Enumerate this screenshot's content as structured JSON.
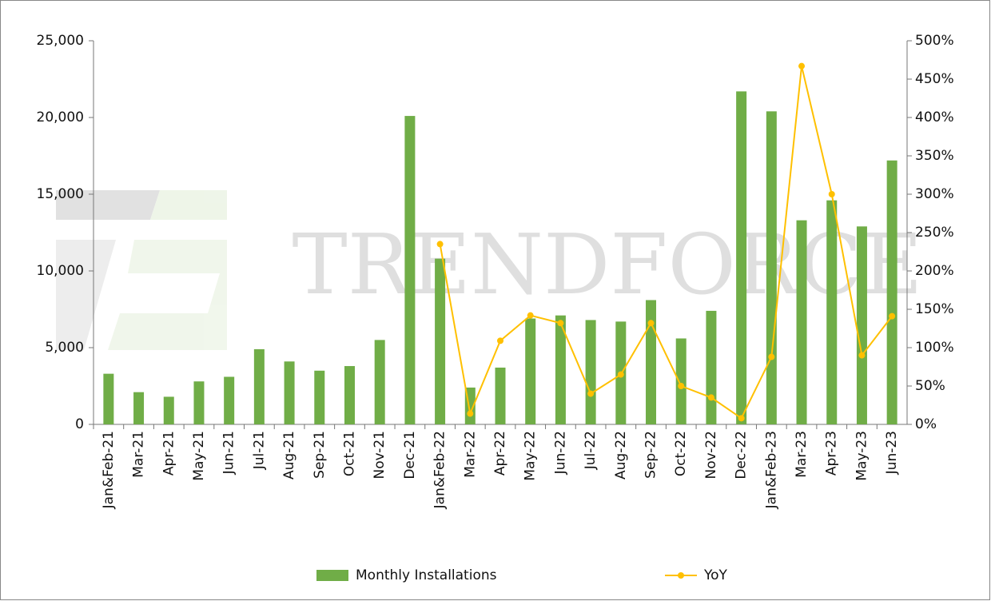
{
  "chart_data": {
    "type": "bar-line",
    "watermark": "TRENDFORCE",
    "categories": [
      "Jan&Feb-21",
      "Mar-21",
      "Apr-21",
      "May-21",
      "Jun-21",
      "Jul-21",
      "Aug-21",
      "Sep-21",
      "Oct-21",
      "Nov-21",
      "Dec-21",
      "Jan&Feb-22",
      "Mar-22",
      "Apr-22",
      "May-22",
      "Jun-22",
      "Jul-22",
      "Aug-22",
      "Sep-22",
      "Oct-22",
      "Nov-22",
      "Dec-22",
      "Jan&Feb-23",
      "Mar-23",
      "Apr-23",
      "May-23",
      "Jun-23"
    ],
    "series": [
      {
        "name": "Monthly Installations",
        "type": "bar",
        "color": "#70ad47",
        "values": [
          3300,
          2100,
          1800,
          2800,
          3100,
          4900,
          4100,
          3500,
          3800,
          5500,
          20100,
          10800,
          2400,
          3700,
          6900,
          7100,
          6800,
          6700,
          8100,
          5600,
          7400,
          21700,
          20400,
          13300,
          14600,
          12900,
          17200
        ]
      },
      {
        "name": "YoY",
        "type": "line",
        "axis": "y2",
        "color": "#ffc000",
        "values": [
          null,
          null,
          null,
          null,
          null,
          null,
          null,
          null,
          null,
          null,
          null,
          235,
          14,
          109,
          142,
          132,
          40,
          65,
          132,
          50,
          35,
          8,
          88,
          467,
          300,
          90,
          141
        ]
      }
    ],
    "ylim": [
      0,
      25000
    ],
    "yticks": [
      0,
      {
        "value": 5000,
        "label": "5,000"
      },
      {
        "value": 10000,
        "label": "10,000"
      },
      {
        "value": 15000,
        "label": "15,000"
      },
      {
        "value": 20000,
        "label": "20,000"
      },
      {
        "value": 25000,
        "label": "25,000"
      }
    ],
    "y2lim": [
      0,
      500
    ],
    "y2ticks": [
      {
        "value": 0,
        "label": "0%"
      },
      {
        "value": 50,
        "label": "50%"
      },
      {
        "value": 100,
        "label": "100%"
      },
      {
        "value": 150,
        "label": "150%"
      },
      {
        "value": 200,
        "label": "200%"
      },
      {
        "value": 250,
        "label": "250%"
      },
      {
        "value": 300,
        "label": "300%"
      },
      {
        "value": 350,
        "label": "350%"
      },
      {
        "value": 400,
        "label": "400%"
      },
      {
        "value": 450,
        "label": "450%"
      },
      {
        "value": 500,
        "label": "500%"
      }
    ],
    "legend": "bottom"
  }
}
